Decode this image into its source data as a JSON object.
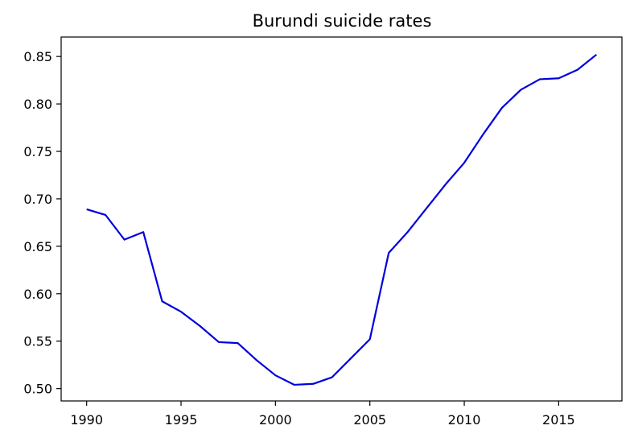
{
  "chart_data": {
    "type": "line",
    "title": "Burundi suicide rates",
    "xlabel": "",
    "ylabel": "",
    "xlim": [
      1988.65,
      2018.35
    ],
    "ylim": [
      0.487,
      0.8705
    ],
    "x_ticks": [
      1990,
      1995,
      2000,
      2005,
      2010,
      2015
    ],
    "x_tick_labels": [
      "1990",
      "1995",
      "2000",
      "2005",
      "2010",
      "2015"
    ],
    "y_ticks": [
      0.5,
      0.55,
      0.6,
      0.65,
      0.7,
      0.75,
      0.8,
      0.85
    ],
    "y_tick_labels": [
      "0.50",
      "0.55",
      "0.60",
      "0.65",
      "0.70",
      "0.75",
      "0.80",
      "0.85"
    ],
    "grid": false,
    "line_color": "#0000dd",
    "series": [
      {
        "x": [
          1990,
          1991,
          1992,
          1993,
          1994,
          1995,
          1996,
          1997,
          1998,
          1999,
          2000,
          2001,
          2002,
          2003,
          2004,
          2005,
          2006,
          2007,
          2008,
          2009,
          2010,
          2011,
          2012,
          2013,
          2014,
          2015,
          2016,
          2017
        ],
        "y": [
          0.689,
          0.683,
          0.657,
          0.665,
          0.592,
          0.581,
          0.566,
          0.549,
          0.548,
          0.53,
          0.514,
          0.504,
          0.505,
          0.512,
          0.532,
          0.552,
          0.643,
          0.665,
          0.69,
          0.715,
          0.738,
          0.768,
          0.796,
          0.815,
          0.826,
          0.827,
          0.836,
          0.852
        ]
      }
    ]
  }
}
